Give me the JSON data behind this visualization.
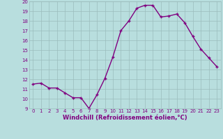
{
  "x": [
    0,
    1,
    2,
    3,
    4,
    5,
    6,
    7,
    8,
    9,
    10,
    11,
    12,
    13,
    14,
    15,
    16,
    17,
    18,
    19,
    20,
    21,
    22,
    23
  ],
  "y": [
    11.5,
    11.6,
    11.1,
    11.1,
    10.6,
    10.1,
    10.1,
    9.0,
    10.4,
    12.1,
    14.3,
    17.0,
    18.0,
    19.3,
    19.6,
    19.6,
    18.4,
    18.5,
    18.7,
    17.8,
    16.4,
    15.1,
    14.2,
    13.3
  ],
  "xlabel": "Windchill (Refroidissement éolien,°C)",
  "ylim": [
    9,
    20
  ],
  "xlim": [
    -0.5,
    23.5
  ],
  "yticks": [
    9,
    10,
    11,
    12,
    13,
    14,
    15,
    16,
    17,
    18,
    19,
    20
  ],
  "xticks": [
    0,
    1,
    2,
    3,
    4,
    5,
    6,
    7,
    8,
    9,
    10,
    11,
    12,
    13,
    14,
    15,
    16,
    17,
    18,
    19,
    20,
    21,
    22,
    23
  ],
  "line_color": "#800080",
  "marker": "+",
  "bg_color": "#b8dede",
  "grid_color": "#9bbcbc",
  "axis_label_color": "#800080",
  "tick_label_color": "#800080",
  "tick_label_size": 5,
  "xlabel_size": 6,
  "linewidth": 1.0,
  "markersize": 3,
  "markeredgewidth": 1.0
}
